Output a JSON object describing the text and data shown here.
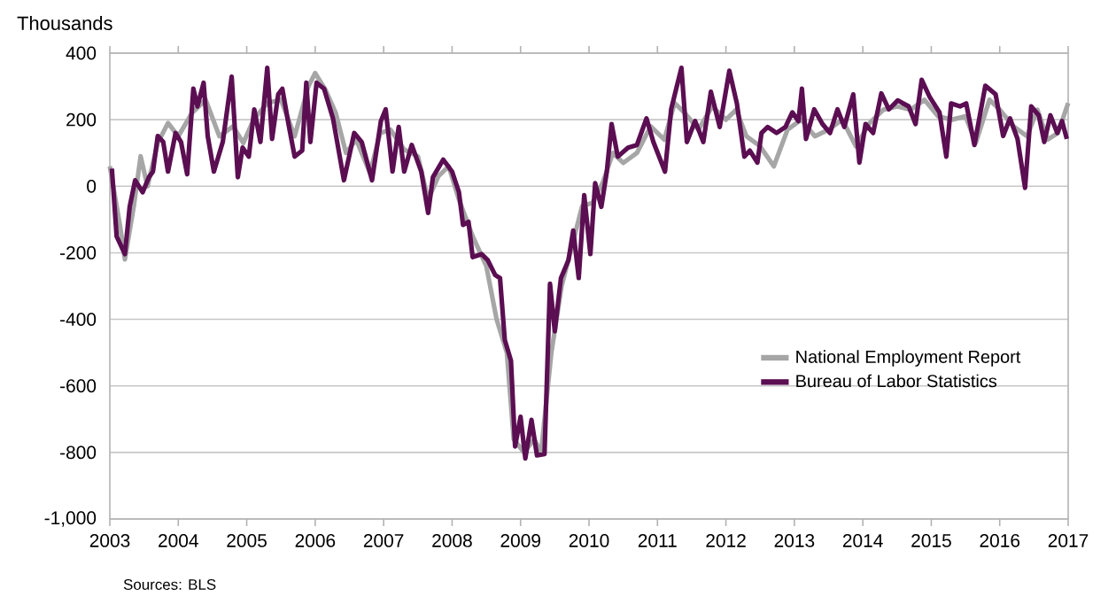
{
  "chart_data": {
    "type": "line",
    "ylabel": "Thousands",
    "annotations": [
      "Sources: BLS"
    ],
    "xlim": [
      2003,
      2017
    ],
    "xticks": [
      2003,
      2004,
      2005,
      2006,
      2007,
      2008,
      2009,
      2010,
      2011,
      2012,
      2013,
      2014,
      2015,
      2016,
      2017
    ],
    "ylim": [
      -1000,
      400
    ],
    "yticks": [
      {
        "value": -1000,
        "label": "-1,000"
      },
      -800,
      -600,
      -400,
      -200,
      0,
      200,
      400
    ],
    "grid": "y",
    "legend": "right",
    "marker": "none",
    "line_style": "solid",
    "series": [
      {
        "name": "National Employment Report",
        "color": "#a6a6a6",
        "x": [
          2003.0,
          2003.15,
          2003.22,
          2003.35,
          2003.45,
          2003.55,
          2003.7,
          2003.85,
          2004.0,
          2004.2,
          2004.4,
          2004.6,
          2004.8,
          2004.95,
          2005.1,
          2005.3,
          2005.5,
          2005.7,
          2005.9,
          2006.0,
          2006.15,
          2006.3,
          2006.45,
          2006.6,
          2006.8,
          2006.95,
          2007.1,
          2007.3,
          2007.5,
          2007.65,
          2007.8,
          2007.95,
          2008.1,
          2008.3,
          2008.5,
          2008.65,
          2008.8,
          2008.9,
          2009.05,
          2009.2,
          2009.3,
          2009.45,
          2009.6,
          2009.75,
          2009.9,
          2010.05,
          2010.2,
          2010.35,
          2010.5,
          2010.7,
          2010.9,
          2011.1,
          2011.25,
          2011.4,
          2011.6,
          2011.8,
          2012.0,
          2012.15,
          2012.3,
          2012.5,
          2012.7,
          2012.9,
          2013.1,
          2013.3,
          2013.5,
          2013.7,
          2013.9,
          2014.1,
          2014.3,
          2014.5,
          2014.7,
          2014.9,
          2015.1,
          2015.3,
          2015.5,
          2015.65,
          2015.85,
          2016.0,
          2016.2,
          2016.4,
          2016.55,
          2016.7,
          2016.85,
          2017.0
        ],
        "values": [
          60,
          -120,
          -220,
          -60,
          90,
          0,
          130,
          190,
          150,
          220,
          260,
          150,
          180,
          130,
          200,
          250,
          260,
          150,
          300,
          340,
          290,
          220,
          100,
          140,
          40,
          160,
          170,
          110,
          90,
          -40,
          30,
          60,
          -40,
          -150,
          -240,
          -400,
          -500,
          -760,
          -800,
          -760,
          -800,
          -500,
          -300,
          -180,
          -60,
          -50,
          10,
          100,
          70,
          100,
          180,
          140,
          250,
          220,
          170,
          240,
          200,
          230,
          150,
          120,
          60,
          170,
          200,
          150,
          170,
          200,
          120,
          190,
          230,
          240,
          230,
          260,
          210,
          200,
          210,
          130,
          260,
          230,
          180,
          150,
          230,
          140,
          160,
          250
        ]
      },
      {
        "name": "Bureau of Labor Statistics",
        "color": "#5b0e52",
        "x": [
          2003.03,
          2003.1,
          2003.22,
          2003.29,
          2003.37,
          2003.48,
          2003.57,
          2003.63,
          2003.7,
          2003.78,
          2003.85,
          2003.96,
          2004.04,
          2004.13,
          2004.22,
          2004.28,
          2004.37,
          2004.43,
          2004.52,
          2004.65,
          2004.78,
          2004.87,
          2004.94,
          2005.03,
          2005.11,
          2005.2,
          2005.3,
          2005.37,
          2005.46,
          2005.52,
          2005.61,
          2005.7,
          2005.81,
          2005.87,
          2005.93,
          2006.02,
          2006.13,
          2006.26,
          2006.42,
          2006.57,
          2006.68,
          2006.83,
          2006.96,
          2007.03,
          2007.13,
          2007.22,
          2007.3,
          2007.41,
          2007.55,
          2007.65,
          2007.72,
          2007.87,
          2008.0,
          2008.1,
          2008.16,
          2008.24,
          2008.3,
          2008.43,
          2008.52,
          2008.63,
          2008.7,
          2008.77,
          2008.86,
          2008.92,
          2009.0,
          2009.07,
          2009.16,
          2009.24,
          2009.35,
          2009.43,
          2009.5,
          2009.59,
          2009.7,
          2009.77,
          2009.85,
          2009.93,
          2010.02,
          2010.09,
          2010.18,
          2010.26,
          2010.33,
          2010.42,
          2010.57,
          2010.7,
          2010.84,
          2010.94,
          2011.11,
          2011.2,
          2011.35,
          2011.43,
          2011.55,
          2011.67,
          2011.78,
          2011.91,
          2012.05,
          2012.16,
          2012.27,
          2012.35,
          2012.46,
          2012.52,
          2012.61,
          2012.74,
          2012.87,
          2012.97,
          2013.06,
          2013.11,
          2013.17,
          2013.29,
          2013.41,
          2013.52,
          2013.63,
          2013.73,
          2013.86,
          2013.95,
          2014.04,
          2014.15,
          2014.27,
          2014.38,
          2014.51,
          2014.67,
          2014.77,
          2014.86,
          2014.98,
          2015.12,
          2015.22,
          2015.29,
          2015.42,
          2015.51,
          2015.63,
          2015.79,
          2015.94,
          2016.05,
          2016.15,
          2016.26,
          2016.37,
          2016.46,
          2016.57,
          2016.65,
          2016.74,
          2016.84,
          2016.91,
          2016.98
        ],
        "values": [
          53,
          -151,
          -204,
          -62,
          18,
          -18,
          27,
          44,
          151,
          133,
          44,
          160,
          133,
          36,
          293,
          240,
          311,
          151,
          44,
          133,
          329,
          27,
          116,
          89,
          231,
          133,
          356,
          142,
          276,
          293,
          187,
          89,
          107,
          311,
          133,
          311,
          293,
          204,
          18,
          160,
          133,
          18,
          196,
          231,
          44,
          178,
          44,
          124,
          44,
          -80,
          27,
          80,
          44,
          -18,
          -116,
          -107,
          -213,
          -204,
          -222,
          -267,
          -276,
          -462,
          -524,
          -782,
          -693,
          -818,
          -702,
          -809,
          -805,
          -293,
          -436,
          -276,
          -222,
          -133,
          -276,
          -27,
          -204,
          9,
          -62,
          44,
          187,
          89,
          116,
          124,
          204,
          133,
          44,
          231,
          356,
          133,
          196,
          133,
          284,
          178,
          347,
          249,
          89,
          107,
          71,
          160,
          178,
          160,
          178,
          222,
          196,
          293,
          142,
          231,
          187,
          160,
          231,
          178,
          276,
          71,
          187,
          160,
          279,
          231,
          258,
          240,
          187,
          320,
          267,
          222,
          89,
          249,
          240,
          249,
          124,
          302,
          276,
          151,
          204,
          142,
          -5,
          240,
          213,
          133,
          213,
          160,
          196,
          142
        ]
      }
    ]
  }
}
